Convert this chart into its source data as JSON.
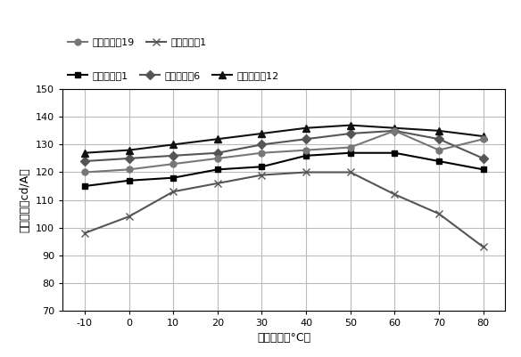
{
  "x": [
    -10,
    0,
    10,
    20,
    30,
    40,
    50,
    60,
    70,
    80
  ],
  "series": [
    {
      "label": "器件实施例1",
      "values": [
        115,
        117,
        118,
        121,
        122,
        126,
        127,
        127,
        124,
        121
      ],
      "color": "#000000",
      "marker": "s",
      "markersize": 5
    },
    {
      "label": "器件实施例6",
      "values": [
        124,
        125,
        126,
        127,
        130,
        132,
        134,
        135,
        132,
        125
      ],
      "color": "#555555",
      "marker": "D",
      "markersize": 5
    },
    {
      "label": "器件实施例12",
      "values": [
        127,
        128,
        130,
        132,
        134,
        136,
        137,
        136,
        135,
        133
      ],
      "color": "#111111",
      "marker": "^",
      "markersize": 6
    },
    {
      "label": "器件实施例19",
      "values": [
        120,
        121,
        123,
        125,
        127,
        128,
        129,
        135,
        128,
        132
      ],
      "color": "#777777",
      "marker": "o",
      "markersize": 5
    },
    {
      "label": "器件比较例1",
      "values": [
        98,
        104,
        113,
        116,
        119,
        120,
        120,
        112,
        105,
        93
      ],
      "color": "#555555",
      "marker": "x",
      "markersize": 6
    }
  ],
  "xlabel": "测量温度（°C）",
  "ylabel": "电流效率（cd/A）",
  "xlim": [
    -15,
    85
  ],
  "ylim": [
    70,
    150
  ],
  "yticks": [
    70,
    80,
    90,
    100,
    110,
    120,
    130,
    140,
    150
  ],
  "xticks": [
    -10,
    0,
    10,
    20,
    30,
    40,
    50,
    60,
    70,
    80
  ],
  "figsize": [
    5.84,
    4.01
  ],
  "dpi": 100,
  "bg_color": "#ffffff",
  "grid_color": "#bbbbbb",
  "linewidth": 1.5
}
